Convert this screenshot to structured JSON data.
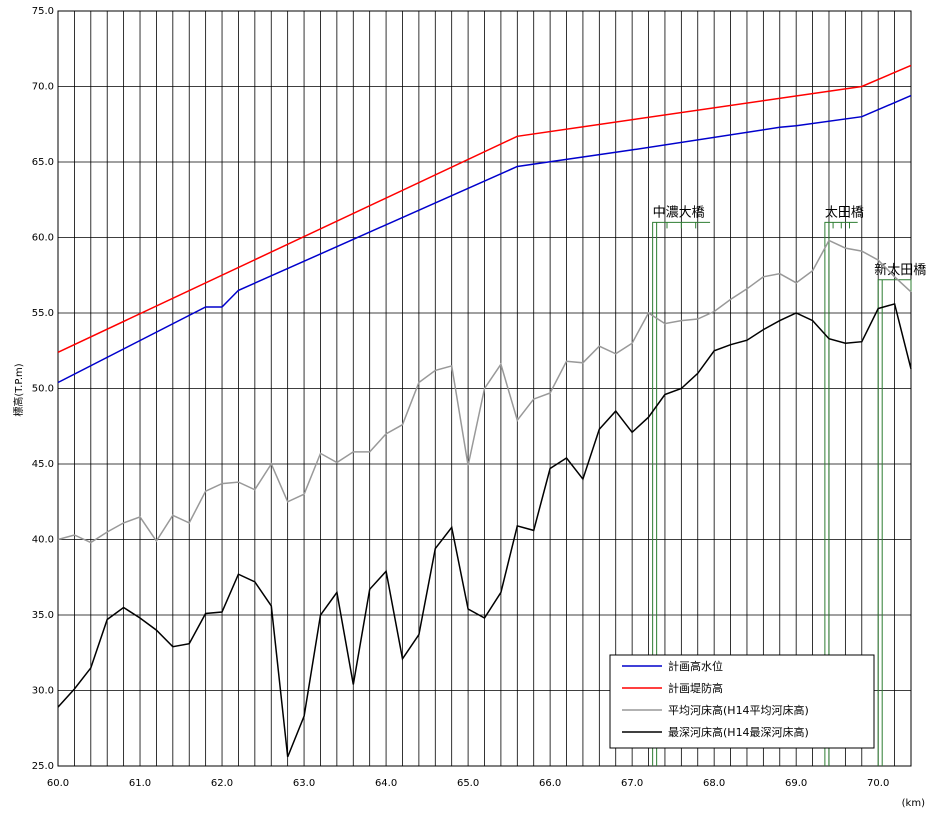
{
  "chart_data": {
    "type": "line",
    "title": "",
    "xlabel": "(km)",
    "ylabel": "標高(T.P.m)",
    "xlim": [
      60.0,
      70.4
    ],
    "ylim": [
      25.0,
      75.0
    ],
    "x_ticks": [
      "60.0",
      "61.0",
      "62.0",
      "63.0",
      "64.0",
      "65.0",
      "66.0",
      "67.0",
      "68.0",
      "69.0",
      "70.0"
    ],
    "y_ticks": [
      "25.0",
      "30.0",
      "35.0",
      "40.0",
      "45.0",
      "50.0",
      "55.0",
      "60.0",
      "65.0",
      "70.0",
      "75.0"
    ],
    "grid": true,
    "legend_position": "bottom-right",
    "series": [
      {
        "name": "計画高水位",
        "color": "#0000cc",
        "x": [
          60.0,
          61.8,
          62.0,
          62.2,
          65.6,
          67.0,
          68.8,
          69.0,
          69.8,
          70.4
        ],
        "y": [
          50.4,
          55.4,
          55.4,
          56.5,
          64.7,
          65.8,
          67.3,
          67.4,
          68.0,
          69.4
        ]
      },
      {
        "name": "計画堤防高",
        "color": "#ff0000",
        "x": [
          60.0,
          65.6,
          69.8,
          70.4
        ],
        "y": [
          52.4,
          66.7,
          70.0,
          71.4
        ]
      },
      {
        "name": "平均河床高(H14平均河床高)",
        "color": "#999999",
        "x": [
          60.0,
          60.2,
          60.4,
          60.6,
          60.8,
          61.0,
          61.2,
          61.4,
          61.6,
          61.8,
          62.0,
          62.2,
          62.4,
          62.6,
          62.8,
          63.0,
          63.2,
          63.4,
          63.6,
          63.8,
          64.0,
          64.2,
          64.4,
          64.6,
          64.8,
          65.0,
          65.2,
          65.4,
          65.6,
          65.8,
          66.0,
          66.2,
          66.4,
          66.6,
          66.8,
          67.0,
          67.2,
          67.4,
          67.6,
          67.8,
          68.0,
          68.2,
          68.4,
          68.6,
          68.8,
          69.0,
          69.2,
          69.4,
          69.6,
          69.8,
          70.0,
          70.2,
          70.4
        ],
        "y": [
          40.0,
          40.3,
          39.8,
          40.5,
          41.1,
          41.5,
          39.9,
          41.6,
          41.1,
          43.2,
          43.7,
          43.8,
          43.3,
          45.0,
          42.5,
          43.0,
          45.7,
          45.1,
          45.8,
          45.8,
          47.0,
          47.6,
          50.4,
          51.2,
          51.5,
          44.9,
          50.0,
          51.6,
          47.9,
          49.3,
          49.7,
          51.8,
          51.7,
          52.8,
          52.3,
          53.0,
          55.0,
          54.3,
          54.5,
          54.6,
          55.1,
          55.9,
          56.6,
          57.4,
          57.6,
          57.0,
          57.8,
          59.8,
          59.3,
          59.1,
          58.5,
          57.4,
          56.4
        ]
      },
      {
        "name": "最深河床高(H14最深河床高)",
        "color": "#000000",
        "x": [
          60.0,
          60.2,
          60.4,
          60.6,
          60.8,
          61.0,
          61.2,
          61.4,
          61.6,
          61.8,
          62.0,
          62.2,
          62.4,
          62.6,
          62.8,
          63.0,
          63.2,
          63.4,
          63.6,
          63.8,
          64.0,
          64.2,
          64.4,
          64.6,
          64.8,
          65.0,
          65.2,
          65.4,
          65.6,
          65.8,
          66.0,
          66.2,
          66.4,
          66.6,
          66.8,
          67.0,
          67.2,
          67.4,
          67.6,
          67.8,
          68.0,
          68.2,
          68.4,
          68.6,
          68.8,
          69.0,
          69.2,
          69.4,
          69.6,
          69.8,
          70.0,
          70.2,
          70.4
        ],
        "y": [
          28.9,
          30.1,
          31.5,
          34.7,
          35.5,
          34.8,
          34.0,
          32.9,
          33.1,
          35.1,
          35.2,
          37.7,
          37.2,
          35.6,
          25.6,
          28.3,
          35.0,
          36.5,
          30.4,
          36.7,
          37.9,
          32.1,
          33.7,
          39.4,
          40.8,
          35.4,
          34.8,
          36.5,
          40.9,
          40.6,
          44.7,
          45.4,
          44.0,
          47.3,
          48.5,
          47.1,
          48.1,
          49.6,
          50.0,
          51.0,
          52.5,
          52.9,
          53.2,
          53.9,
          54.5,
          55.0,
          54.5,
          53.3,
          53.0,
          53.1,
          55.3,
          55.6,
          51.3
        ]
      }
    ],
    "annotations": [
      {
        "label": "中濃大橋",
        "x_start": 67.25,
        "x_end": 67.95
      },
      {
        "label": "太田橋",
        "x_start": 69.35,
        "x_end": 69.75
      },
      {
        "label": "新太田橋",
        "x_start": 70.0,
        "x_end": 70.4
      }
    ]
  }
}
